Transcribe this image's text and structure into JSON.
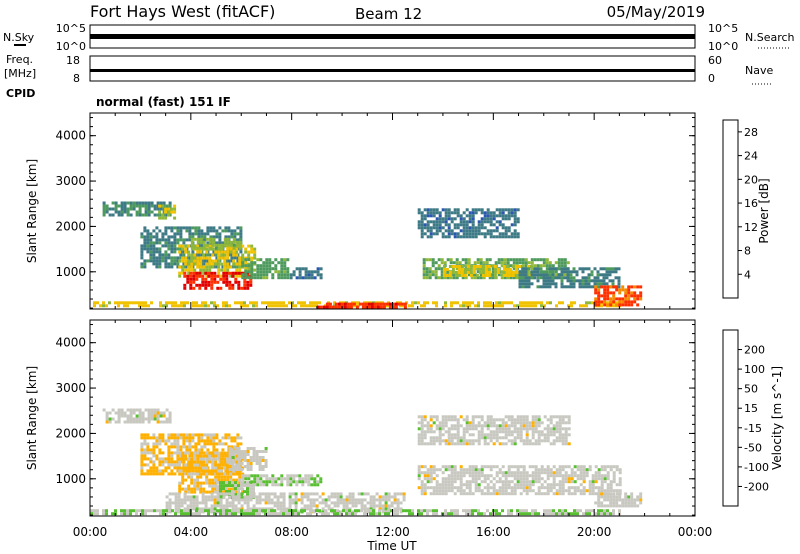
{
  "header": {
    "station": "Fort Hays West (fitACF)",
    "beam": "Beam 12",
    "date": "05/May/2019"
  },
  "mode_text": "normal (fast) 151 IF",
  "panel_labels": {
    "nsky": "N.Sky",
    "nsearch": "N.Search",
    "freq_line1": "Freq.",
    "freq_line2": "[MHz]",
    "nave": "Nave",
    "cpid": "CPID"
  },
  "strip_ticks": {
    "noise_left_top": "10^5",
    "noise_left_bottom": "10^0",
    "noise_right_top": "10^5",
    "noise_right_bottom": "10^0",
    "freq_left_top": "18",
    "freq_left_bottom": "8",
    "nave_right_top": "60",
    "nave_right_bottom": "0"
  },
  "colors": {
    "power": [
      "#0a1ee0",
      "#2a56b0",
      "#3e7a86",
      "#4e9a5e",
      "#8fb83a",
      "#f0c200",
      "#f58a00",
      "#ff3000",
      "#e00000"
    ],
    "velocity": [
      "#e00000",
      "#ff3a00",
      "#ff8000",
      "#ffb000",
      "#c8c8c0",
      "#58c030",
      "#2e8a50",
      "#2a58a8",
      "#1a2ab8"
    ]
  },
  "chart_data": [
    {
      "type": "heatmap",
      "name": "power",
      "x_ticks": [
        "00:00",
        "04:00",
        "08:00",
        "12:00",
        "16:00",
        "20:00",
        "00:00"
      ],
      "xlim": [
        0,
        24
      ],
      "ylabel": "Slant Range [km]",
      "ylim": [
        180,
        4500
      ],
      "y_ticks": [
        "1000",
        "2000",
        "3000",
        "4000"
      ],
      "colorbar": {
        "label": "Power [dB]",
        "ticks": [
          "4",
          "8",
          "12",
          "16",
          "20",
          "24",
          "28"
        ],
        "range": [
          0,
          30
        ]
      },
      "regions": [
        {
          "t0": 0.5,
          "t1": 3.2,
          "r0": 2250,
          "r1": 2550,
          "value": 10
        },
        {
          "t0": 2.7,
          "t1": 3.3,
          "r0": 2200,
          "r1": 2480,
          "value": 16
        },
        {
          "t0": 2.0,
          "t1": 6.0,
          "r0": 1100,
          "r1": 2000,
          "value": 9
        },
        {
          "t0": 3.5,
          "t1": 6.5,
          "r0": 900,
          "r1": 1600,
          "value": 17
        },
        {
          "t0": 4.0,
          "t1": 6.0,
          "r0": 1500,
          "r1": 1750,
          "value": 15
        },
        {
          "t0": 3.7,
          "t1": 6.4,
          "r0": 650,
          "r1": 1000,
          "value": 27
        },
        {
          "t0": 6.0,
          "t1": 7.8,
          "r0": 900,
          "r1": 1300,
          "value": 12
        },
        {
          "t0": 7.8,
          "t1": 9.2,
          "r0": 900,
          "r1": 1100,
          "value": 8
        },
        {
          "t0": 0.0,
          "t1": 21.0,
          "r0": 220,
          "r1": 350,
          "value": 18
        },
        {
          "t0": 9.0,
          "t1": 12.5,
          "r0": 200,
          "r1": 320,
          "value": 26
        },
        {
          "t0": 13.0,
          "t1": 17.0,
          "r0": 1800,
          "r1": 2400,
          "value": 8
        },
        {
          "t0": 13.2,
          "t1": 19.0,
          "r0": 850,
          "r1": 1300,
          "value": 13
        },
        {
          "t0": 14.0,
          "t1": 17.5,
          "r0": 950,
          "r1": 1150,
          "value": 17
        },
        {
          "t0": 17.0,
          "t1": 21.0,
          "r0": 650,
          "r1": 1100,
          "value": 9
        },
        {
          "t0": 20.0,
          "t1": 21.8,
          "r0": 300,
          "r1": 700,
          "value": 24
        }
      ]
    },
    {
      "type": "heatmap",
      "name": "velocity",
      "x_ticks": [
        "00:00",
        "04:00",
        "08:00",
        "12:00",
        "16:00",
        "20:00",
        "00:00"
      ],
      "xlim": [
        0,
        24
      ],
      "xlabel": "Time UT",
      "ylabel": "Slant Range [km]",
      "ylim": [
        180,
        4500
      ],
      "y_ticks": [
        "1000",
        "2000",
        "3000",
        "4000"
      ],
      "colorbar": {
        "label": "Velocity [m s^-1]",
        "ticks": [
          "-200",
          "-100",
          "-50",
          "-15",
          "15",
          "50",
          "100",
          "200"
        ],
        "range": [
          -250,
          250
        ]
      },
      "regions": [
        {
          "t0": 0.5,
          "t1": 3.2,
          "r0": 2250,
          "r1": 2550,
          "value": 0
        },
        {
          "t0": 2.0,
          "t1": 6.0,
          "r0": 1100,
          "r1": 2000,
          "value": -40
        },
        {
          "t0": 3.5,
          "t1": 6.0,
          "r0": 700,
          "r1": 1600,
          "value": -40
        },
        {
          "t0": 5.0,
          "t1": 6.5,
          "r0": 600,
          "r1": 950,
          "value": 30
        },
        {
          "t0": 5.5,
          "t1": 7.0,
          "r0": 1200,
          "r1": 1700,
          "value": 0
        },
        {
          "t0": 6.0,
          "t1": 9.2,
          "r0": 900,
          "r1": 1100,
          "value": 30
        },
        {
          "t0": 3.0,
          "t1": 12.5,
          "r0": 300,
          "r1": 700,
          "value": 0
        },
        {
          "t0": 0.0,
          "t1": 21.0,
          "r0": 200,
          "r1": 330,
          "value": 30
        },
        {
          "t0": 13.0,
          "t1": 19.0,
          "r0": 1800,
          "r1": 2400,
          "value": 0
        },
        {
          "t0": 13.0,
          "t1": 21.0,
          "r0": 650,
          "r1": 1300,
          "value": 0
        },
        {
          "t0": 20.0,
          "t1": 21.8,
          "r0": 400,
          "r1": 700,
          "value": 0
        }
      ]
    }
  ]
}
